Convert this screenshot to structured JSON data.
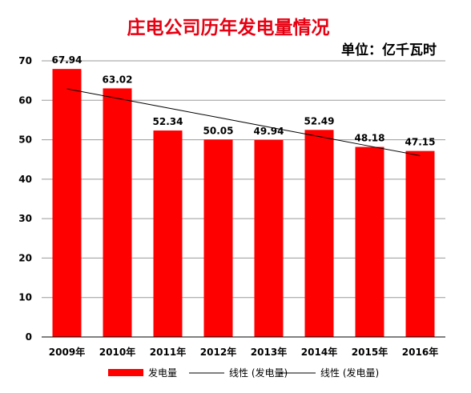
{
  "chart_data": {
    "type": "bar",
    "title": "庄电公司历年发电量情况",
    "unit": "单位：亿千瓦时",
    "categories": [
      "2009年",
      "2010年",
      "2011年",
      "2012年",
      "2013年",
      "2014年",
      "2015年",
      "2016年"
    ],
    "series": [
      {
        "name": "发电量",
        "type": "bar",
        "color": "#ff0000",
        "values": [
          67.94,
          63.02,
          52.34,
          50.05,
          49.94,
          52.49,
          48.18,
          47.15
        ]
      },
      {
        "name": "线性 (发电量)",
        "type": "trendline",
        "color": "#000000",
        "values": [
          62.9,
          60.48,
          58.06,
          55.64,
          53.22,
          50.8,
          48.38,
          45.96
        ]
      }
    ],
    "legend_labels": [
      "发电量",
      "线性 (发电量)",
      "线性 (发电量)"
    ],
    "data_labels": [
      "67.94",
      "63.02",
      "52.34",
      "50.05",
      "49.94",
      "52.49",
      "48.18",
      "47.15"
    ],
    "y_ticks": [
      "0",
      "10",
      "20",
      "30",
      "40",
      "50",
      "60",
      "70"
    ],
    "ylim": [
      0,
      70
    ],
    "grid": true,
    "legend_position": "bottom"
  }
}
